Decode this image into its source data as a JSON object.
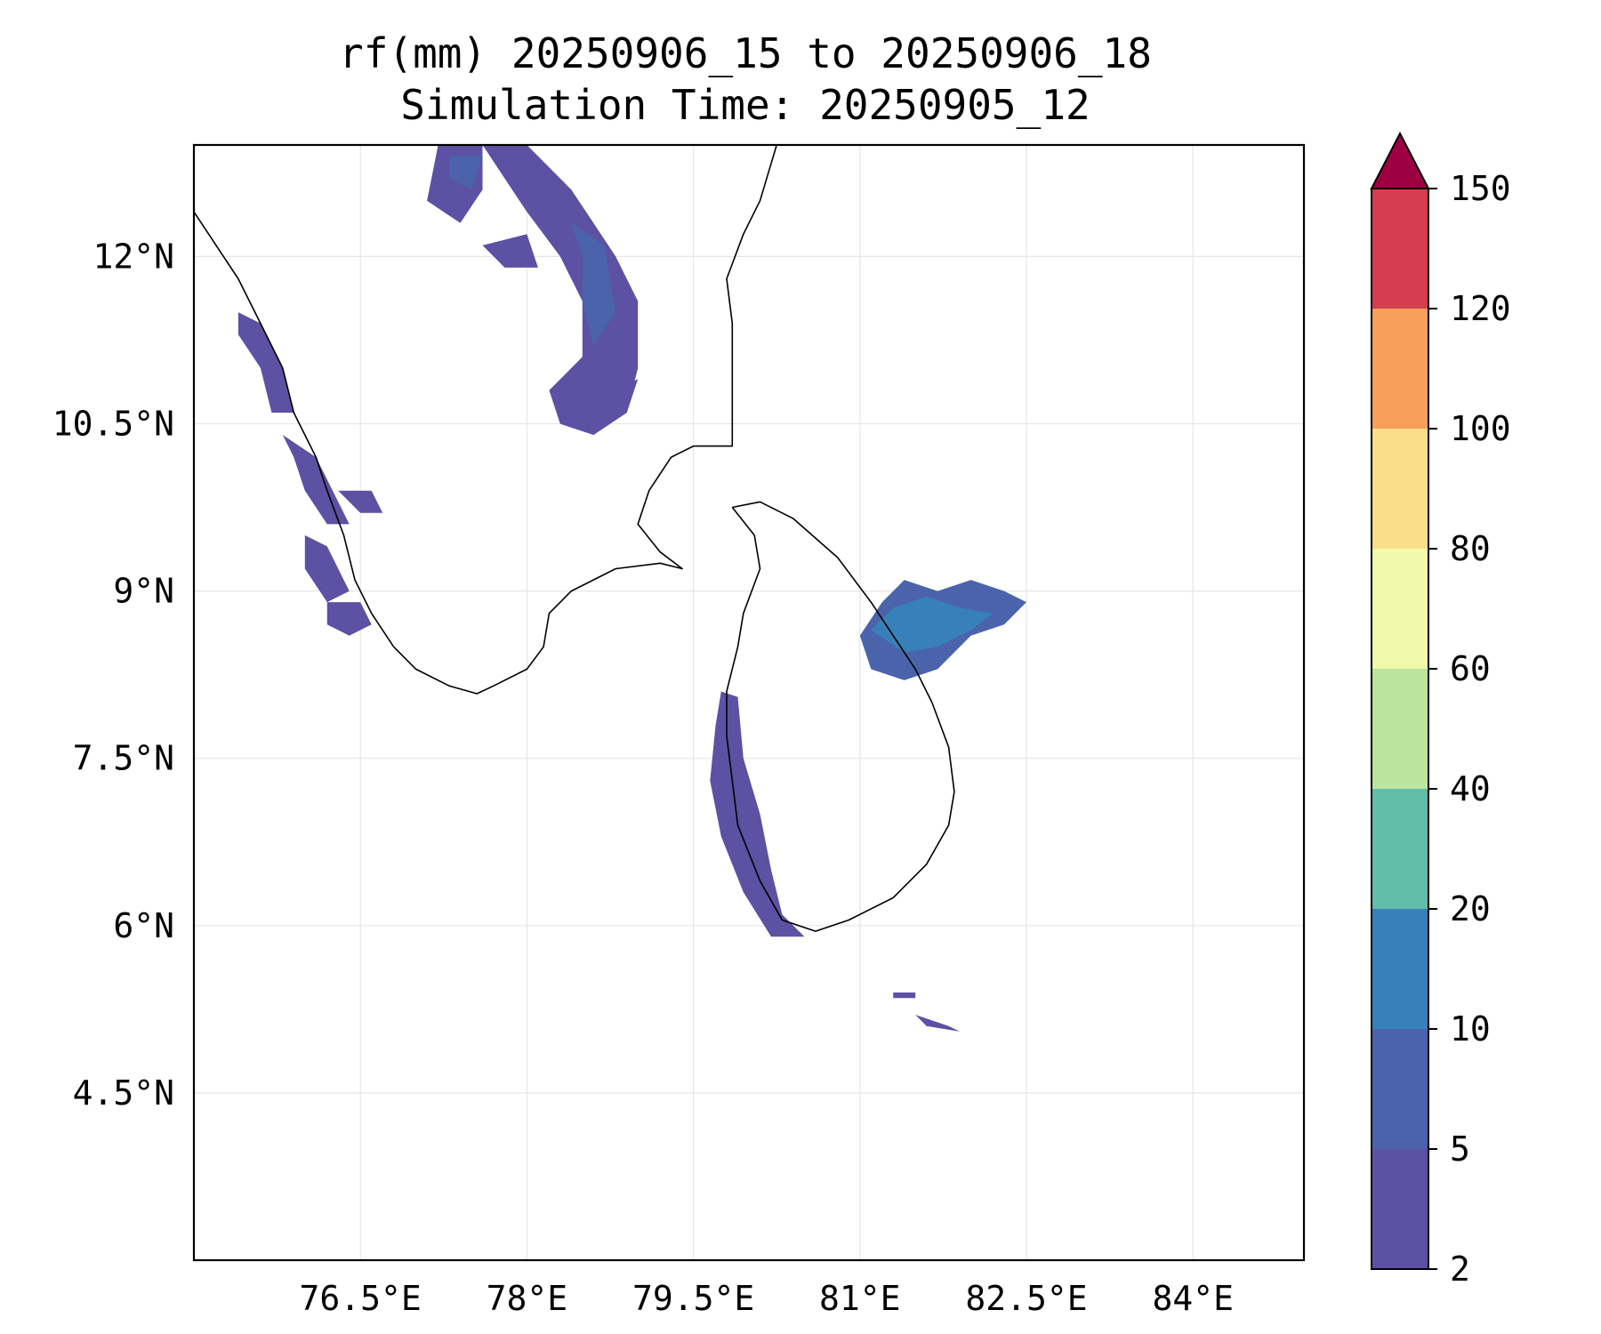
{
  "title": {
    "line1": "rf(mm) 20250906_15 to 20250906_18",
    "line2": "Simulation Time: 20250905_12"
  },
  "map": {
    "lon_range": [
      75.0,
      85.0
    ],
    "lat_range": [
      3.0,
      13.0
    ],
    "x_ticks": [
      {
        "value": 76.5,
        "label": "76.5°E"
      },
      {
        "value": 78.0,
        "label": "78°E"
      },
      {
        "value": 79.5,
        "label": "79.5°E"
      },
      {
        "value": 81.0,
        "label": "81°E"
      },
      {
        "value": 82.5,
        "label": "82.5°E"
      },
      {
        "value": 84.0,
        "label": "84°E"
      }
    ],
    "y_ticks": [
      {
        "value": 12.0,
        "label": "12°N"
      },
      {
        "value": 10.5,
        "label": "10.5°N"
      },
      {
        "value": 9.0,
        "label": "9°N"
      },
      {
        "value": 7.5,
        "label": "7.5°N"
      },
      {
        "value": 6.0,
        "label": "6°N"
      },
      {
        "value": 4.5,
        "label": "4.5°N"
      }
    ],
    "grid": true,
    "rain_regions": [
      {
        "name": "kerala-coast-north",
        "level": 1,
        "lonlat": [
          [
            75.4,
            11.5
          ],
          [
            75.6,
            11.4
          ],
          [
            75.8,
            11.0
          ],
          [
            75.9,
            10.6
          ],
          [
            75.7,
            10.6
          ],
          [
            75.6,
            11.0
          ],
          [
            75.4,
            11.3
          ]
        ]
      },
      {
        "name": "kerala-coast-mid",
        "level": 1,
        "lonlat": [
          [
            75.8,
            10.4
          ],
          [
            76.1,
            10.2
          ],
          [
            76.3,
            9.8
          ],
          [
            76.4,
            9.6
          ],
          [
            76.2,
            9.6
          ],
          [
            76.0,
            9.9
          ],
          [
            75.9,
            10.2
          ]
        ]
      },
      {
        "name": "kerala-coast-south",
        "level": 1,
        "lonlat": [
          [
            76.0,
            9.5
          ],
          [
            76.2,
            9.4
          ],
          [
            76.4,
            9.0
          ],
          [
            76.2,
            8.9
          ],
          [
            76.0,
            9.2
          ]
        ]
      },
      {
        "name": "kerala-patch-south",
        "level": 1,
        "lonlat": [
          [
            76.2,
            8.9
          ],
          [
            76.5,
            8.9
          ],
          [
            76.6,
            8.7
          ],
          [
            76.4,
            8.6
          ],
          [
            76.2,
            8.7
          ]
        ]
      },
      {
        "name": "kerala-patch-east",
        "level": 1,
        "lonlat": [
          [
            76.3,
            9.9
          ],
          [
            76.6,
            9.9
          ],
          [
            76.7,
            9.7
          ],
          [
            76.5,
            9.7
          ]
        ]
      },
      {
        "name": "western-ghats-band",
        "level": 1,
        "lonlat": [
          [
            77.6,
            13.0
          ],
          [
            78.0,
            13.0
          ],
          [
            78.4,
            12.6
          ],
          [
            78.6,
            12.3
          ],
          [
            78.8,
            12.0
          ],
          [
            79.0,
            11.6
          ],
          [
            79.0,
            11.0
          ],
          [
            78.9,
            10.6
          ],
          [
            78.6,
            10.4
          ],
          [
            78.3,
            10.5
          ],
          [
            78.2,
            10.8
          ],
          [
            78.5,
            11.1
          ],
          [
            78.5,
            11.6
          ],
          [
            78.3,
            12.0
          ],
          [
            78.0,
            12.4
          ],
          [
            77.8,
            12.7
          ]
        ]
      },
      {
        "name": "band-east-spur",
        "level": 1,
        "lonlat": [
          [
            78.3,
            10.9
          ],
          [
            78.8,
            10.8
          ],
          [
            79.0,
            10.9
          ],
          [
            78.9,
            10.6
          ],
          [
            78.6,
            10.4
          ],
          [
            78.3,
            10.5
          ]
        ]
      },
      {
        "name": "north-patch-west",
        "level": 1,
        "lonlat": [
          [
            77.2,
            13.0
          ],
          [
            77.6,
            13.0
          ],
          [
            77.6,
            12.6
          ],
          [
            77.4,
            12.3
          ],
          [
            77.1,
            12.5
          ]
        ]
      },
      {
        "name": "north-patch-small",
        "level": 1,
        "lonlat": [
          [
            77.6,
            12.1
          ],
          [
            78.0,
            12.2
          ],
          [
            78.1,
            11.9
          ],
          [
            77.8,
            11.9
          ]
        ]
      },
      {
        "name": "sri-lanka-west-coast",
        "level": 1,
        "lonlat": [
          [
            79.75,
            8.1
          ],
          [
            79.9,
            8.05
          ],
          [
            79.95,
            7.5
          ],
          [
            80.1,
            7.0
          ],
          [
            80.2,
            6.5
          ],
          [
            80.3,
            6.1
          ],
          [
            80.5,
            5.9
          ],
          [
            80.2,
            5.9
          ],
          [
            79.95,
            6.3
          ],
          [
            79.75,
            6.8
          ],
          [
            79.65,
            7.3
          ],
          [
            79.7,
            7.8
          ]
        ]
      },
      {
        "name": "sri-lanka-northeast",
        "level": 2,
        "lonlat": [
          [
            81.0,
            8.6
          ],
          [
            81.2,
            8.9
          ],
          [
            81.4,
            9.1
          ],
          [
            81.7,
            9.0
          ],
          [
            82.0,
            9.1
          ],
          [
            82.3,
            9.0
          ],
          [
            82.5,
            8.9
          ],
          [
            82.3,
            8.7
          ],
          [
            82.0,
            8.6
          ],
          [
            81.7,
            8.3
          ],
          [
            81.4,
            8.2
          ],
          [
            81.1,
            8.3
          ]
        ]
      },
      {
        "name": "south-islets",
        "level": 1,
        "lonlat": [
          [
            81.3,
            5.4
          ],
          [
            81.5,
            5.4
          ],
          [
            81.5,
            5.35
          ],
          [
            81.3,
            5.35
          ]
        ]
      },
      {
        "name": "south-islets-2",
        "level": 1,
        "lonlat": [
          [
            81.5,
            5.2
          ],
          [
            81.8,
            5.1
          ],
          [
            81.9,
            5.05
          ],
          [
            81.6,
            5.1
          ]
        ]
      }
    ],
    "rain_cores": [
      {
        "name": "band-core-north",
        "level": 2,
        "lonlat": [
          [
            77.3,
            12.9
          ],
          [
            77.6,
            12.9
          ],
          [
            77.5,
            12.6
          ],
          [
            77.3,
            12.7
          ]
        ]
      },
      {
        "name": "band-core-mid",
        "level": 2,
        "lonlat": [
          [
            78.4,
            12.3
          ],
          [
            78.7,
            12.1
          ],
          [
            78.8,
            11.5
          ],
          [
            78.6,
            11.2
          ],
          [
            78.5,
            11.6
          ],
          [
            78.5,
            12.0
          ]
        ]
      },
      {
        "name": "ne-core",
        "level": 3,
        "lonlat": [
          [
            81.1,
            8.65
          ],
          [
            81.3,
            8.85
          ],
          [
            81.6,
            8.95
          ],
          [
            81.9,
            8.85
          ],
          [
            82.2,
            8.8
          ],
          [
            82.0,
            8.65
          ],
          [
            81.7,
            8.5
          ],
          [
            81.4,
            8.45
          ]
        ]
      }
    ],
    "coastlines": [
      {
        "name": "india-west-coast",
        "lonlat": [
          [
            75.0,
            12.4
          ],
          [
            75.2,
            12.1
          ],
          [
            75.4,
            11.8
          ],
          [
            75.6,
            11.4
          ],
          [
            75.8,
            11.0
          ],
          [
            75.9,
            10.6
          ],
          [
            76.1,
            10.2
          ],
          [
            76.2,
            9.9
          ],
          [
            76.35,
            9.5
          ],
          [
            76.45,
            9.1
          ],
          [
            76.6,
            8.8
          ],
          [
            76.8,
            8.5
          ],
          [
            77.0,
            8.3
          ],
          [
            77.3,
            8.15
          ],
          [
            77.55,
            8.08
          ],
          [
            77.7,
            8.15
          ],
          [
            78.0,
            8.3
          ],
          [
            78.15,
            8.5
          ],
          [
            78.2,
            8.8
          ],
          [
            78.4,
            9.0
          ],
          [
            78.8,
            9.2
          ],
          [
            79.2,
            9.25
          ],
          [
            79.4,
            9.2
          ],
          [
            79.2,
            9.35
          ],
          [
            79.0,
            9.6
          ],
          [
            79.1,
            9.9
          ],
          [
            79.3,
            10.2
          ],
          [
            79.5,
            10.3
          ],
          [
            79.85,
            10.3
          ],
          [
            79.85,
            10.8
          ],
          [
            79.85,
            11.4
          ],
          [
            79.8,
            11.8
          ],
          [
            79.95,
            12.2
          ],
          [
            80.1,
            12.5
          ],
          [
            80.25,
            13.0
          ]
        ]
      },
      {
        "name": "sri-lanka",
        "lonlat": [
          [
            79.85,
            9.75
          ],
          [
            80.1,
            9.8
          ],
          [
            80.4,
            9.65
          ],
          [
            80.8,
            9.3
          ],
          [
            81.1,
            8.9
          ],
          [
            81.3,
            8.6
          ],
          [
            81.5,
            8.3
          ],
          [
            81.65,
            8.0
          ],
          [
            81.8,
            7.6
          ],
          [
            81.85,
            7.2
          ],
          [
            81.8,
            6.9
          ],
          [
            81.6,
            6.55
          ],
          [
            81.3,
            6.25
          ],
          [
            80.9,
            6.05
          ],
          [
            80.6,
            5.95
          ],
          [
            80.3,
            6.05
          ],
          [
            80.1,
            6.4
          ],
          [
            79.9,
            6.9
          ],
          [
            79.85,
            7.3
          ],
          [
            79.8,
            7.7
          ],
          [
            79.8,
            8.1
          ],
          [
            79.9,
            8.5
          ],
          [
            79.95,
            8.8
          ],
          [
            80.1,
            9.2
          ],
          [
            80.05,
            9.5
          ],
          [
            79.85,
            9.75
          ]
        ]
      }
    ]
  },
  "colorbar": {
    "levels": [
      "2",
      "5",
      "10",
      "20",
      "40",
      "60",
      "80",
      "100",
      "120",
      "150"
    ],
    "colors": [
      "#5c51a3",
      "#4a63ab",
      "#3880b9",
      "#62bda8",
      "#bde49f",
      "#f1f9aa",
      "#fbde8a",
      "#f99f5b",
      "#d53e4f"
    ],
    "extend_color": "#9e0142"
  }
}
